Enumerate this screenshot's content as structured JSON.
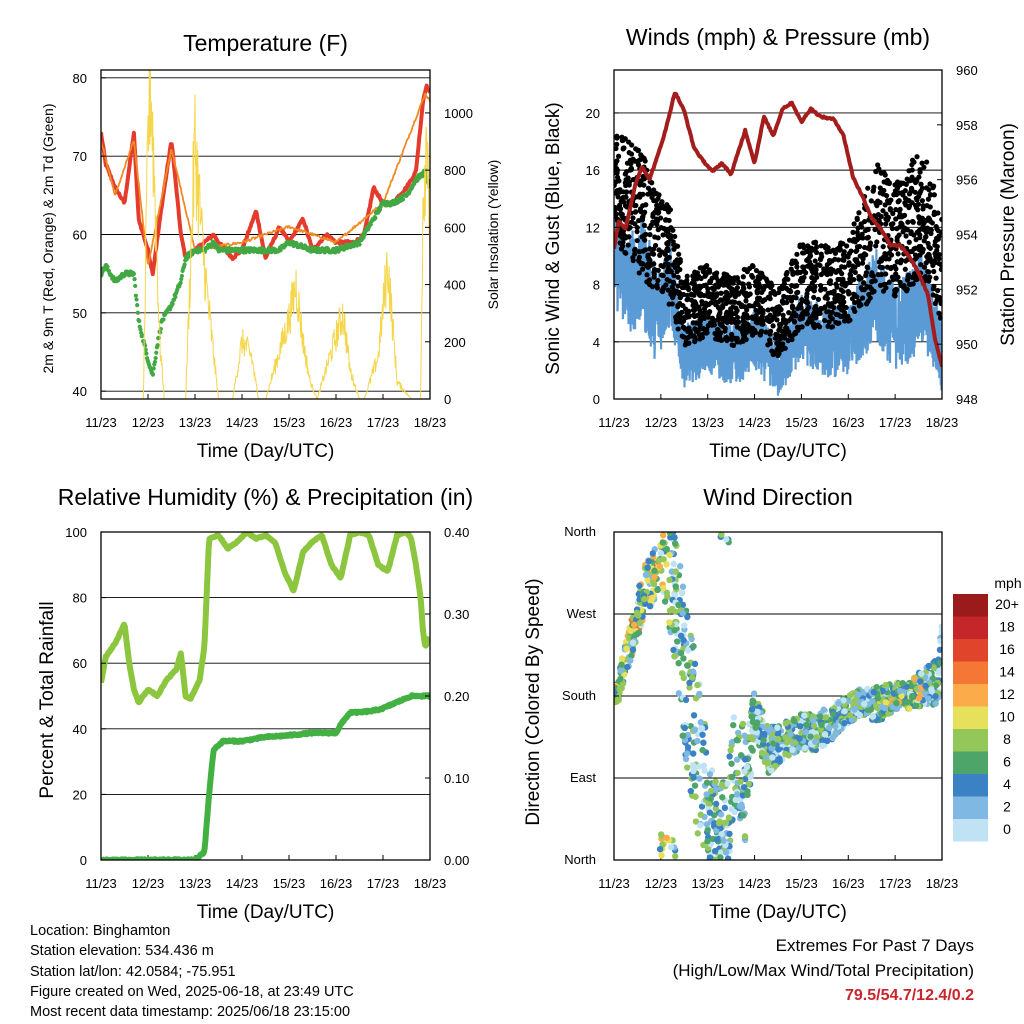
{
  "footer": {
    "location": "Location: Binghamton",
    "elevation": "Station elevation: 534.436 m",
    "latlon": "Station lat/lon: 42.0584; -75.951",
    "created": "Figure created on Wed, 2025-06-18, at 23:49 UTC",
    "recent": "Most recent data timestamp: 2025/06/18 23:15:00",
    "extremes_title": "Extremes For Past 7 Days",
    "extremes_sub": "(High/Low/Max Wind/Total Precipitation)",
    "extremes_values": "79.5/54.7/12.4/0.2"
  },
  "chart_data": [
    {
      "id": "temperature",
      "type": "line",
      "title": "Temperature (F)",
      "xlabel": "Time (Day/UTC)",
      "ylabel": "2m & 9m T (Red, Orange) & 2m Td (Green)",
      "y2label": "Solar Insolation (Yellow)",
      "x_ticks": [
        "11/23",
        "12/23",
        "13/23",
        "14/23",
        "15/23",
        "16/23",
        "17/23",
        "18/23"
      ],
      "xlim": [
        0,
        7
      ],
      "ylim": [
        39,
        81
      ],
      "y_ticks": [
        40,
        50,
        60,
        70,
        80
      ],
      "y2lim": [
        0,
        1150
      ],
      "y2_ticks": [
        0,
        200,
        400,
        600,
        800,
        1000
      ],
      "grid_y": [
        40,
        50,
        60,
        70,
        80
      ],
      "series": [
        {
          "color": "#e53b2c",
          "style": "thick-line",
          "x": [
            0,
            0.1,
            0.3,
            0.5,
            0.7,
            0.8,
            1.0,
            1.1,
            1.3,
            1.5,
            1.7,
            1.8,
            2.0,
            2.2,
            2.4,
            2.5,
            2.8,
            3.0,
            3.3,
            3.5,
            3.8,
            4.0,
            4.3,
            4.5,
            4.8,
            5.0,
            5.2,
            5.4,
            5.6,
            5.8,
            6.0,
            6.2,
            6.5,
            6.7,
            6.85,
            6.92,
            7.0
          ],
          "y": [
            73,
            69,
            66,
            64,
            73,
            62,
            58,
            55,
            64,
            72,
            60,
            57,
            58,
            59,
            60,
            59,
            57,
            58,
            63,
            57,
            61,
            59,
            62,
            58,
            60,
            59,
            59,
            59,
            60,
            66,
            64,
            64,
            66,
            68,
            77,
            79,
            78
          ]
        },
        {
          "color": "#f08a24",
          "style": "line",
          "x": [
            0,
            0.3,
            0.7,
            1.0,
            1.5,
            2.0,
            3.0,
            4.0,
            5.0,
            6.0,
            6.9,
            7.0
          ],
          "y": [
            72,
            65,
            72,
            56,
            71,
            58,
            59,
            61,
            59,
            64,
            78,
            77
          ]
        },
        {
          "color": "#43a843",
          "style": "dots",
          "x": [
            0,
            0.1,
            0.3,
            0.5,
            0.7,
            0.8,
            1.0,
            1.1,
            1.2,
            1.3,
            1.5,
            1.7,
            1.8,
            2.0,
            2.2,
            2.4,
            2.5,
            2.8,
            3.0,
            3.3,
            3.5,
            3.8,
            4.0,
            4.5,
            5.0,
            5.5,
            5.7,
            6.0,
            6.2,
            6.5,
            6.7,
            6.9,
            7.0
          ],
          "y": [
            55,
            56,
            54,
            55,
            55,
            49,
            44,
            42,
            46,
            49,
            51,
            54,
            57,
            58,
            58,
            59,
            58,
            58,
            58,
            58,
            58,
            58,
            59,
            58,
            58,
            59,
            61,
            64,
            64,
            65,
            67,
            68,
            66
          ]
        },
        {
          "color": "#f5d64a",
          "style": "thin-line",
          "axis": "y2",
          "x": [
            0,
            0.9,
            1.0,
            1.05,
            1.15,
            1.25,
            1.35,
            1.5,
            1.8,
            2.0,
            2.15,
            2.3,
            2.5,
            2.8,
            3.0,
            3.1,
            3.2,
            3.35,
            3.5,
            4.0,
            4.15,
            4.3,
            4.45,
            4.6,
            5.0,
            5.15,
            5.3,
            5.5,
            5.6,
            5.9,
            6.1,
            6.3,
            6.6,
            6.8,
            6.85,
            6.9,
            6.95,
            7.0
          ],
          "y": [
            0,
            0,
            900,
            1150,
            700,
            200,
            0,
            0,
            0,
            900,
            550,
            300,
            0,
            0,
            200,
            180,
            150,
            0,
            0,
            280,
            400,
            200,
            60,
            0,
            220,
            300,
            100,
            0,
            0,
            150,
            480,
            60,
            0,
            0,
            700,
            850,
            1000,
            400
          ]
        }
      ]
    },
    {
      "id": "winds",
      "type": "scatter",
      "title": "Winds (mph) & Pressure (mb)",
      "xlabel": "Time (Day/UTC)",
      "ylabel": "Sonic Wind & Gust (Blue, Black)",
      "y2label": "Station Pressure (Maroon)",
      "x_ticks": [
        "11/23",
        "12/23",
        "13/23",
        "14/23",
        "15/23",
        "16/23",
        "17/23",
        "18/23"
      ],
      "xlim": [
        0,
        7
      ],
      "ylim": [
        0,
        23
      ],
      "y_ticks": [
        0,
        4,
        8,
        12,
        16,
        20
      ],
      "y2lim": [
        948,
        960
      ],
      "y2_ticks": [
        948,
        950,
        952,
        954,
        956,
        958,
        960
      ],
      "grid_y": [
        4,
        8,
        12,
        16,
        20
      ],
      "series": [
        {
          "color": "#5b9bd5",
          "style": "band-line",
          "x": [
            0,
            0.3,
            0.6,
            0.9,
            1.2,
            1.5,
            2.0,
            2.5,
            3.0,
            3.3,
            3.5,
            4.0,
            4.5,
            5.0,
            5.3,
            5.6,
            6.0,
            6.3,
            6.6,
            7.0
          ],
          "y": [
            10,
            8,
            9,
            6,
            8,
            3,
            4,
            3,
            4,
            3,
            2,
            5,
            4,
            4,
            6,
            7,
            5,
            6,
            7,
            3
          ],
          "spread": [
            3.5,
            3.5,
            4,
            3.5,
            3,
            2.2,
            2.2,
            2.2,
            2.2,
            2,
            2,
            2.5,
            2.5,
            2.5,
            3,
            3.5,
            3,
            3.5,
            3.5,
            2.5
          ]
        },
        {
          "color": "#000000",
          "style": "dots",
          "x": [
            0,
            0.3,
            0.6,
            0.9,
            1.2,
            1.5,
            2.0,
            2.5,
            3.0,
            3.3,
            3.5,
            4.0,
            4.5,
            5.0,
            5.3,
            5.6,
            6.0,
            6.3,
            6.6,
            7.0
          ],
          "y": [
            15,
            14,
            13,
            11,
            10,
            6,
            7,
            6,
            7,
            6,
            5,
            8,
            8,
            8,
            10,
            12,
            11,
            12,
            13,
            9
          ],
          "spread": [
            4,
            4,
            4.5,
            3.5,
            3.5,
            2.5,
            2.5,
            2.5,
            2.5,
            2.5,
            2.5,
            3,
            3,
            3,
            4,
            4.5,
            4,
            4.5,
            4.5,
            4
          ]
        },
        {
          "color": "#a31d1d",
          "style": "thick-line",
          "axis": "y2",
          "x": [
            0,
            0.1,
            0.25,
            0.45,
            0.6,
            0.75,
            0.9,
            1.1,
            1.3,
            1.5,
            1.7,
            1.85,
            2.1,
            2.3,
            2.5,
            2.8,
            3.0,
            3.2,
            3.4,
            3.6,
            3.8,
            4.0,
            4.2,
            4.4,
            4.7,
            4.9,
            5.1,
            5.3,
            5.5,
            5.7,
            5.9,
            6.1,
            6.3,
            6.5,
            6.7,
            6.85,
            7.0
          ],
          "y": [
            953.5,
            954.5,
            954.2,
            955.8,
            956.5,
            956,
            956.7,
            957.8,
            959.2,
            958.5,
            957.2,
            956.8,
            956.3,
            956.6,
            956.2,
            957.8,
            956.6,
            958.3,
            957.6,
            958.6,
            958.8,
            958.1,
            958.6,
            958.3,
            958.2,
            957.6,
            956.1,
            955.4,
            954.6,
            954.2,
            953.6,
            953.6,
            953.2,
            952.6,
            951.8,
            950.2,
            949.2
          ]
        }
      ]
    },
    {
      "id": "humidity",
      "type": "line",
      "title": "Relative Humidity (%) & Precipitation (in)",
      "xlabel": "Time (Day/UTC)",
      "ylabel": "Percent & Total Rainfall",
      "x_ticks": [
        "11/23",
        "12/23",
        "13/23",
        "14/23",
        "15/23",
        "16/23",
        "17/23",
        "18/23"
      ],
      "xlim": [
        0,
        7
      ],
      "ylim": [
        0,
        100
      ],
      "y_ticks": [
        0,
        20,
        40,
        60,
        80,
        100
      ],
      "y2lim": [
        0,
        0.4
      ],
      "y2_ticks": [
        "0.00",
        "0.10",
        "0.20",
        "0.30",
        "0.40"
      ],
      "grid_y": [
        20,
        40,
        60,
        80,
        100
      ],
      "series": [
        {
          "color": "#8cc53e",
          "style": "thick-line",
          "x": [
            0,
            0.1,
            0.3,
            0.5,
            0.6,
            0.7,
            0.8,
            1.0,
            1.2,
            1.4,
            1.6,
            1.7,
            1.8,
            1.9,
            2.1,
            2.2,
            2.3,
            2.5,
            2.7,
            2.9,
            3.1,
            3.3,
            3.5,
            3.7,
            3.9,
            4.1,
            4.3,
            4.5,
            4.7,
            4.9,
            5.1,
            5.3,
            5.5,
            5.7,
            5.9,
            6.1,
            6.3,
            6.5,
            6.6,
            6.7,
            6.8,
            6.85,
            6.9,
            7.0
          ],
          "y": [
            54,
            62,
            66,
            72,
            60,
            52,
            48,
            52,
            50,
            55,
            58,
            63,
            50,
            49,
            55,
            65,
            98,
            99,
            95,
            97,
            100,
            98,
            99,
            97,
            88,
            82,
            94,
            97,
            99,
            90,
            86,
            99,
            100,
            99,
            90,
            88,
            99,
            100,
            98,
            90,
            80,
            70,
            65,
            68
          ]
        },
        {
          "color": "#43b043",
          "style": "thick-line",
          "axis": "y2",
          "x": [
            0,
            2.0,
            2.1,
            2.2,
            2.3,
            2.35,
            2.4,
            2.5,
            2.6,
            3.0,
            3.5,
            4.0,
            4.5,
            4.8,
            5.0,
            5.1,
            5.3,
            5.5,
            5.8,
            6.0,
            6.2,
            6.4,
            6.6,
            6.8,
            7.0
          ],
          "y": [
            0,
            0,
            0.005,
            0.01,
            0.08,
            0.11,
            0.135,
            0.14,
            0.145,
            0.145,
            0.15,
            0.152,
            0.155,
            0.155,
            0.155,
            0.165,
            0.18,
            0.18,
            0.182,
            0.185,
            0.19,
            0.195,
            0.2,
            0.2,
            0.2
          ]
        }
      ]
    },
    {
      "id": "wind_direction",
      "type": "scatter",
      "title": "Wind Direction",
      "xlabel": "Time (Day/UTC)",
      "ylabel": "Direction (Colored By Speed)",
      "x_ticks": [
        "11/23",
        "12/23",
        "13/23",
        "14/23",
        "15/23",
        "16/23",
        "17/23",
        "18/23"
      ],
      "xlim": [
        0,
        7
      ],
      "y_categories": [
        "North",
        "East",
        "South",
        "West",
        "North"
      ],
      "ylim": [
        0,
        360
      ],
      "grid_y": [
        90,
        180,
        270,
        360
      ],
      "colorbar": {
        "title": "mph",
        "labels": [
          "20+",
          "18",
          "16",
          "14",
          "12",
          "10",
          "8",
          "6",
          "4",
          "2",
          "0"
        ],
        "colors": [
          "#9b1b1b",
          "#c5262a",
          "#e0452b",
          "#f47735",
          "#fbab4a",
          "#e7e05a",
          "#93c75a",
          "#4da56a",
          "#3b82c4",
          "#7fb8e2",
          "#bfe3f5"
        ]
      },
      "series": [
        {
          "x": [
            0,
            0.1,
            0.3,
            0.5,
            0.7,
            0.9,
            1.0,
            1.3,
            1.5,
            1.8,
            2.0,
            2.2,
            2.4,
            2.6,
            2.8,
            3.0,
            3.3,
            3.6,
            4.0,
            4.3,
            4.6,
            5.0,
            5.3,
            5.6,
            6.0,
            6.3,
            6.6,
            6.9,
            7.0
          ],
          "y": [
            180,
            190,
            230,
            270,
            300,
            320,
            350,
            300,
            200,
            120,
            60,
            40,
            30,
            120,
            80,
            160,
            120,
            130,
            140,
            140,
            150,
            165,
            175,
            170,
            180,
            180,
            190,
            195,
            230
          ],
          "spread": [
            10,
            15,
            20,
            25,
            30,
            30,
            40,
            80,
            90,
            100,
            60,
            40,
            60,
            70,
            60,
            30,
            25,
            20,
            20,
            20,
            20,
            15,
            15,
            20,
            15,
            15,
            20,
            25,
            30
          ]
        }
      ]
    }
  ]
}
